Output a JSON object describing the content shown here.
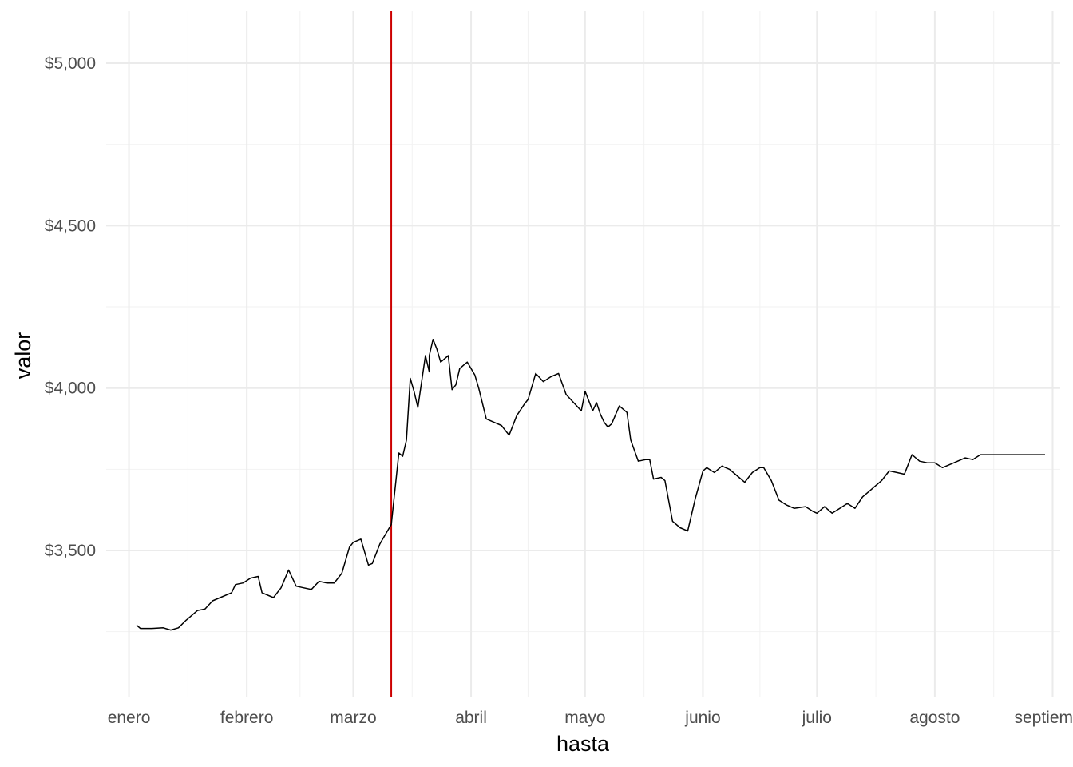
{
  "chart_data": {
    "type": "line",
    "title": "",
    "xlabel": "hasta",
    "ylabel": "valor",
    "x_ticks": [
      "enero",
      "febrero",
      "marzo",
      "abril",
      "mayo",
      "junio",
      "julio",
      "agosto",
      "septiem"
    ],
    "y_ticks": [
      "$3,500",
      "$4,000",
      "$4,500",
      "$5,000"
    ],
    "y_tick_values": [
      3500,
      4000,
      4500,
      5000
    ],
    "ylim": [
      3050,
      5160
    ],
    "xlim": [
      "2020-12-26",
      "2021-09-03"
    ],
    "grid": true,
    "legend": "none",
    "line_color": "#000000",
    "reference_line": {
      "date": "2021-03-11",
      "color": "#cc0000"
    },
    "series": [
      {
        "x": [
          "2021-01-03",
          "2021-01-04",
          "2021-01-07",
          "2021-01-10",
          "2021-01-12",
          "2021-01-14",
          "2021-01-16",
          "2021-01-19",
          "2021-01-21",
          "2021-01-23",
          "2021-01-25",
          "2021-01-28",
          "2021-01-29",
          "2021-01-31",
          "2021-02-02",
          "2021-02-04",
          "2021-02-05",
          "2021-02-08",
          "2021-02-10",
          "2021-02-12",
          "2021-02-14",
          "2021-02-16",
          "2021-02-18",
          "2021-02-20",
          "2021-02-22",
          "2021-02-24",
          "2021-02-26",
          "2021-02-28",
          "2021-03-01",
          "2021-03-03",
          "2021-03-05",
          "2021-03-06",
          "2021-03-08",
          "2021-03-09",
          "2021-03-10",
          "2021-03-11",
          "2021-03-13",
          "2021-03-14",
          "2021-03-15",
          "2021-03-16",
          "2021-03-17",
          "2021-03-18",
          "2021-03-20",
          "2021-03-21",
          "2021-03-21",
          "2021-03-22",
          "2021-03-23",
          "2021-03-24",
          "2021-03-26",
          "2021-03-27",
          "2021-03-28",
          "2021-03-29",
          "2021-03-30",
          "2021-03-31",
          "2021-04-02",
          "2021-04-03",
          "2021-04-05",
          "2021-04-07",
          "2021-04-09",
          "2021-04-11",
          "2021-04-13",
          "2021-04-15",
          "2021-04-16",
          "2021-04-18",
          "2021-04-20",
          "2021-04-22",
          "2021-04-24",
          "2021-04-26",
          "2021-04-28",
          "2021-04-30",
          "2021-05-01",
          "2021-05-03",
          "2021-05-04",
          "2021-05-05",
          "2021-05-06",
          "2021-05-07",
          "2021-05-08",
          "2021-05-10",
          "2021-05-12",
          "2021-05-13",
          "2021-05-15",
          "2021-05-17",
          "2021-05-18",
          "2021-05-19",
          "2021-05-21",
          "2021-05-22",
          "2021-05-24",
          "2021-05-26",
          "2021-05-28",
          "2021-05-30",
          "2021-06-01",
          "2021-06-02",
          "2021-06-04",
          "2021-06-06",
          "2021-06-08",
          "2021-06-10",
          "2021-06-12",
          "2021-06-14",
          "2021-06-16",
          "2021-06-17",
          "2021-06-19",
          "2021-06-21",
          "2021-06-23",
          "2021-06-25",
          "2021-06-28",
          "2021-06-30",
          "2021-07-01",
          "2021-07-03",
          "2021-07-05",
          "2021-07-07",
          "2021-07-09",
          "2021-07-11",
          "2021-07-13",
          "2021-07-15",
          "2021-07-16",
          "2021-07-18",
          "2021-07-20",
          "2021-07-22",
          "2021-07-24",
          "2021-07-26",
          "2021-07-28",
          "2021-07-30",
          "2021-08-01",
          "2021-08-03",
          "2021-08-05",
          "2021-08-07",
          "2021-08-09",
          "2021-08-11",
          "2021-08-13",
          "2021-08-15",
          "2021-08-17",
          "2021-08-19",
          "2021-08-21",
          "2021-08-23",
          "2021-08-25",
          "2021-08-27",
          "2021-08-29",
          "2021-08-30"
        ],
        "values": [
          3270,
          3260,
          3260,
          3262,
          3255,
          3262,
          3285,
          3315,
          3320,
          3345,
          3355,
          3370,
          3395,
          3400,
          3415,
          3420,
          3370,
          3355,
          3385,
          3440,
          3390,
          3385,
          3380,
          3405,
          3400,
          3400,
          3430,
          3510,
          3525,
          3535,
          3455,
          3460,
          3520,
          3540,
          3560,
          3580,
          3800,
          3790,
          3840,
          4030,
          3990,
          3940,
          4100,
          4050,
          4100,
          4150,
          4120,
          4080,
          4100,
          3995,
          4010,
          4060,
          4070,
          4080,
          4040,
          4000,
          3905,
          3895,
          3885,
          3855,
          3915,
          3950,
          3965,
          4045,
          4020,
          4035,
          4045,
          3980,
          3955,
          3930,
          3990,
          3930,
          3955,
          3920,
          3895,
          3880,
          3890,
          3945,
          3925,
          3840,
          3775,
          3780,
          3780,
          3720,
          3725,
          3715,
          3590,
          3570,
          3560,
          3660,
          3745,
          3755,
          3740,
          3760,
          3750,
          3730,
          3710,
          3740,
          3755,
          3755,
          3715,
          3655,
          3640,
          3630,
          3635,
          3620,
          3615,
          3635,
          3615,
          3630,
          3645,
          3630,
          3665,
          3685,
          3695,
          3715,
          3745,
          3740,
          3735,
          3795,
          3775,
          3770,
          3770,
          3755,
          3765,
          3775,
          3785,
          3780,
          3795,
          3795,
          3795,
          3795,
          3795,
          3795,
          3795,
          3795,
          3795,
          3795
        ]
      }
    ]
  }
}
